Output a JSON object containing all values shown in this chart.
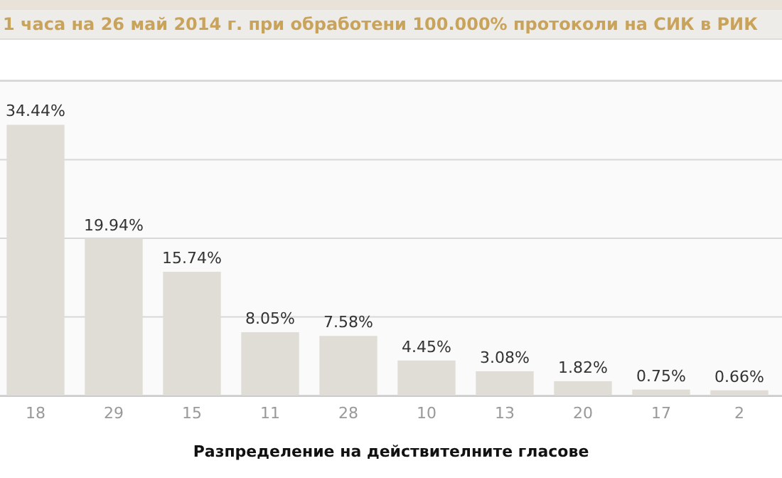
{
  "chart_data": {
    "type": "bar",
    "title": "1 часа на 26 май 2014 г. при обработени 100.000% протоколи на СИК в РИК",
    "xlabel": "Разпределение на действителните гласове",
    "categories": [
      "18",
      "29",
      "15",
      "11",
      "28",
      "10",
      "13",
      "20",
      "17",
      "2"
    ],
    "values": [
      34.44,
      19.94,
      15.74,
      8.05,
      7.58,
      4.45,
      3.08,
      1.82,
      0.75,
      0.66
    ],
    "value_labels": [
      "34.44%",
      "19.94%",
      "15.74%",
      "8.05%",
      "7.58%",
      "4.45%",
      "3.08%",
      "1.82%",
      "0.75%",
      "0.66%"
    ],
    "color": "#e0ddd6",
    "ylim": [
      0,
      40
    ],
    "yticks": [
      {
        "value": 0,
        "label": null
      },
      {
        "value": 10,
        "label": null
      },
      {
        "value": 20,
        "label": null
      },
      {
        "value": 30,
        "label": null
      },
      {
        "value": 40,
        "label": null
      }
    ],
    "grid": "y",
    "tick_labels": "x"
  }
}
